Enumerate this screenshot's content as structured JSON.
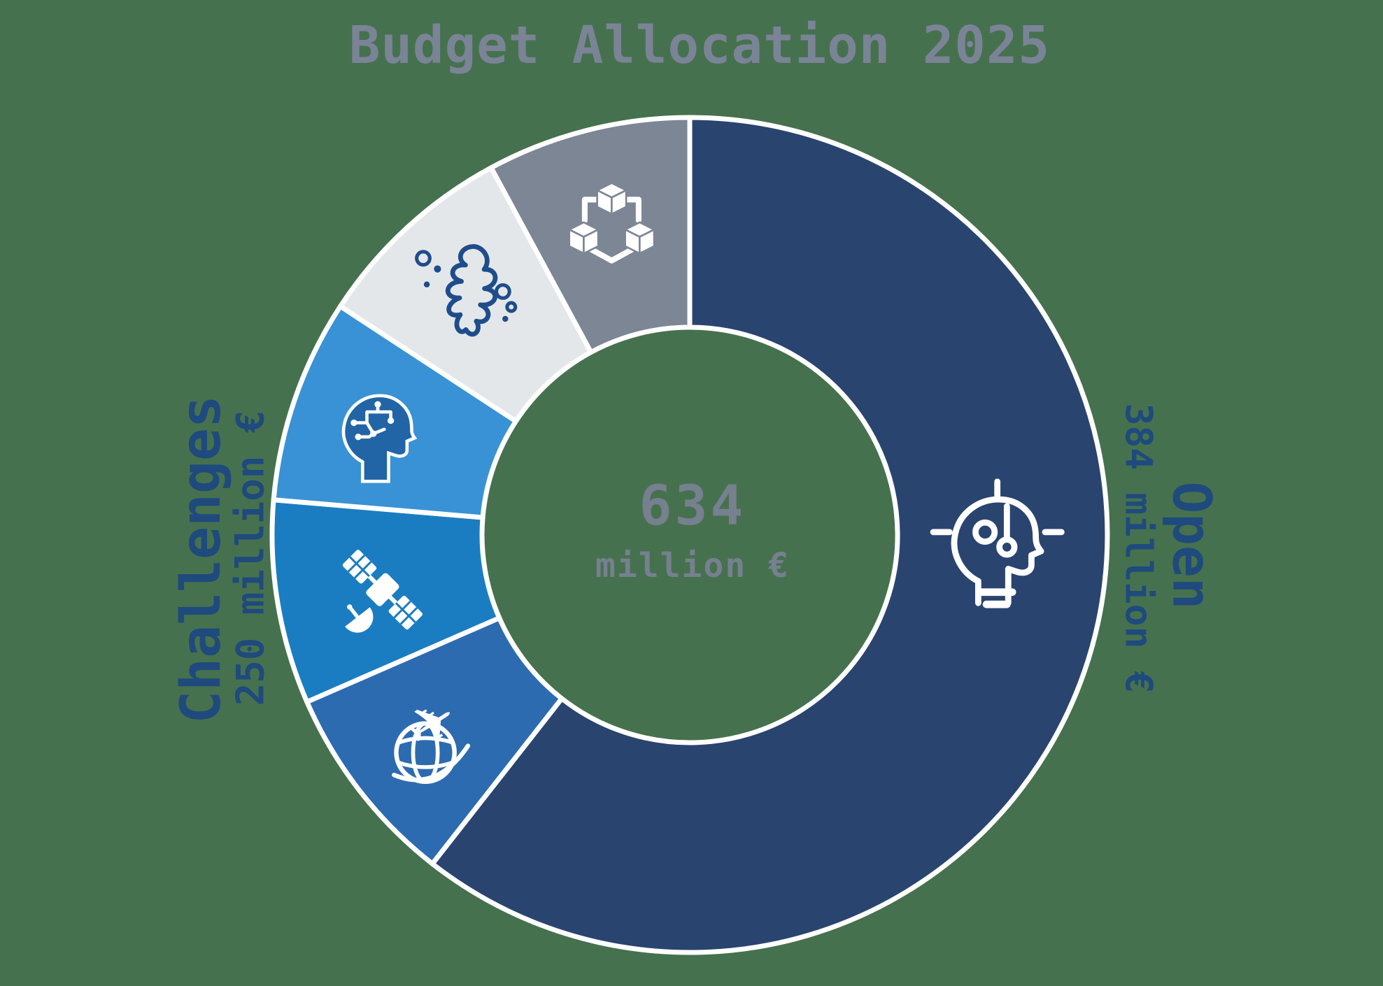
{
  "title": "Budget Allocation 2025",
  "center": {
    "value": "634",
    "unit": "million €"
  },
  "labels": {
    "open": {
      "name": "Open",
      "amount": "384 million €"
    },
    "challenges": {
      "name": "Challenges",
      "amount": "250 million €"
    }
  },
  "palette": {
    "background": "#46714e",
    "title_text": "#7a8496",
    "center_text": "#76808f",
    "side_label_text": "#1f4a7d",
    "segment_divider": "#ffffff"
  },
  "chart_data": {
    "type": "pie",
    "subtype": "donut",
    "title": "Budget Allocation 2025",
    "center_label": {
      "value": 634,
      "unit": "million €"
    },
    "direction": "clockwise",
    "start_angle_deg": 0,
    "inner_radius_ratio": 0.497,
    "legend_position": "none",
    "segments": [
      {
        "id": "open",
        "label": "Open",
        "value": 384,
        "color": "#2a4470",
        "icon": "idea-head-icon"
      },
      {
        "id": "plane-globe",
        "label": "Challenges",
        "value": 50,
        "color": "#2d6bb0",
        "icon": "plane-globe-icon"
      },
      {
        "id": "satellite",
        "label": "Challenges",
        "value": 50,
        "color": "#1b7dc1",
        "icon": "satellite-icon"
      },
      {
        "id": "ai-head",
        "label": "Challenges",
        "value": 50,
        "color": "#3992d5",
        "icon": "ai-head-icon"
      },
      {
        "id": "coral",
        "label": "Challenges",
        "value": 50,
        "color": "#e4e7ea",
        "icon": "coral-icon"
      },
      {
        "id": "network-cubes",
        "label": "Challenges",
        "value": 50,
        "color": "#7c8695",
        "icon": "network-cubes-icon"
      }
    ],
    "groups": [
      {
        "label": "Open",
        "value": 384,
        "amount_text": "384 million €"
      },
      {
        "label": "Challenges",
        "value": 250,
        "amount_text": "250 million €"
      }
    ],
    "total": 634
  }
}
